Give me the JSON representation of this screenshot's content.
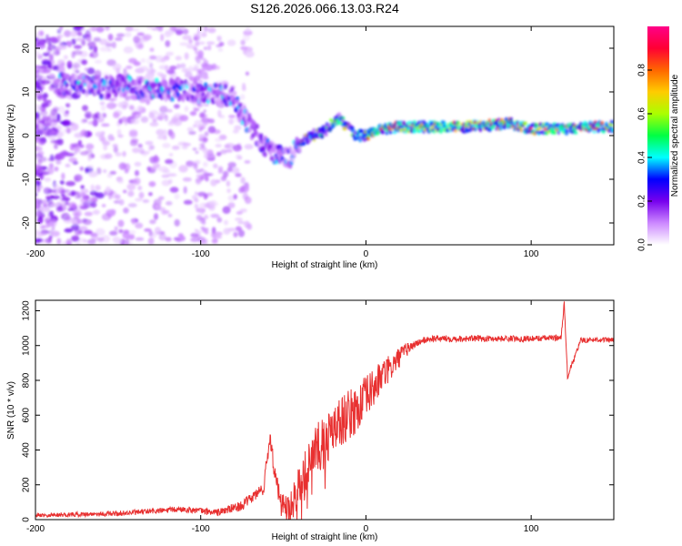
{
  "title": "S126.2026.066.13.03.R24",
  "chart_data": [
    {
      "type": "heatmap",
      "xlabel": "Height of straight line (km)",
      "ylabel": "Frequency (Hz)",
      "xlim": [
        -200,
        150
      ],
      "ylim": [
        -25,
        25
      ],
      "xticks": [
        -200,
        -100,
        0,
        100
      ],
      "yticks": [
        -20,
        -10,
        0,
        10,
        20
      ],
      "colorbar": {
        "label": "Normalized spectral amplitude",
        "range": [
          0,
          1
        ],
        "ticks": [
          "0.0",
          "0.2",
          "0.4",
          "0.6",
          "0.8"
        ],
        "colors": [
          "#ffffff",
          "#cc88ff",
          "#7700ee",
          "#0000ff",
          "#00ffff",
          "#00ff44",
          "#aaff00",
          "#ffcc00",
          "#ff6600",
          "#ff0033",
          "#ff0088"
        ]
      },
      "ridge": {
        "x": [
          -175,
          -160,
          -145,
          -130,
          -115,
          -100,
          -90,
          -82,
          -75,
          -68,
          -62,
          -56,
          -50,
          -46,
          -42,
          -38,
          -33,
          -25,
          -20,
          -16,
          -12,
          -6,
          0,
          5,
          10,
          20,
          40,
          60,
          80,
          85,
          90,
          100,
          110,
          120,
          135,
          150
        ],
        "y": [
          12,
          11,
          11.5,
          10.5,
          10.5,
          10,
          9.5,
          9,
          5,
          1,
          -2,
          -4,
          -5,
          -5,
          -3,
          -1,
          0,
          1,
          3,
          4,
          2,
          0,
          0,
          1,
          1.5,
          2,
          2,
          2,
          2.5,
          3,
          2.5,
          1.5,
          1.5,
          1.5,
          2,
          2
        ]
      }
    },
    {
      "type": "line",
      "xlabel": "Height of straight line (km)",
      "ylabel": "SNR (10 * v/v)",
      "xlim": [
        -200,
        150
      ],
      "ylim": [
        0,
        1260
      ],
      "xticks": [
        -200,
        -100,
        0,
        100
      ],
      "yticks": [
        0,
        200,
        400,
        600,
        800,
        1000,
        1200
      ],
      "color": "#e83030",
      "trend": {
        "x": [
          -200,
          -150,
          -110,
          -90,
          -75,
          -62,
          -58,
          -55,
          -52,
          -48,
          -45,
          -40,
          -35,
          -30,
          -25,
          -20,
          -15,
          -10,
          -5,
          0,
          5,
          10,
          15,
          20,
          25,
          30,
          35,
          40,
          60,
          80,
          100,
          118,
          120,
          122,
          130,
          140,
          150
        ],
        "y": [
          25,
          35,
          60,
          40,
          80,
          180,
          480,
          250,
          120,
          70,
          110,
          220,
          300,
          420,
          430,
          520,
          570,
          600,
          640,
          700,
          760,
          830,
          870,
          930,
          980,
          1010,
          1030,
          1040,
          1040,
          1040,
          1040,
          1045,
          1240,
          820,
          1030,
          1035,
          1030
        ]
      },
      "noise": {
        "x": [
          -200,
          -100,
          -70,
          -50,
          -40,
          -20,
          0,
          20,
          30,
          150
        ],
        "amp": [
          12,
          18,
          30,
          60,
          120,
          160,
          130,
          60,
          20,
          15
        ]
      }
    }
  ]
}
